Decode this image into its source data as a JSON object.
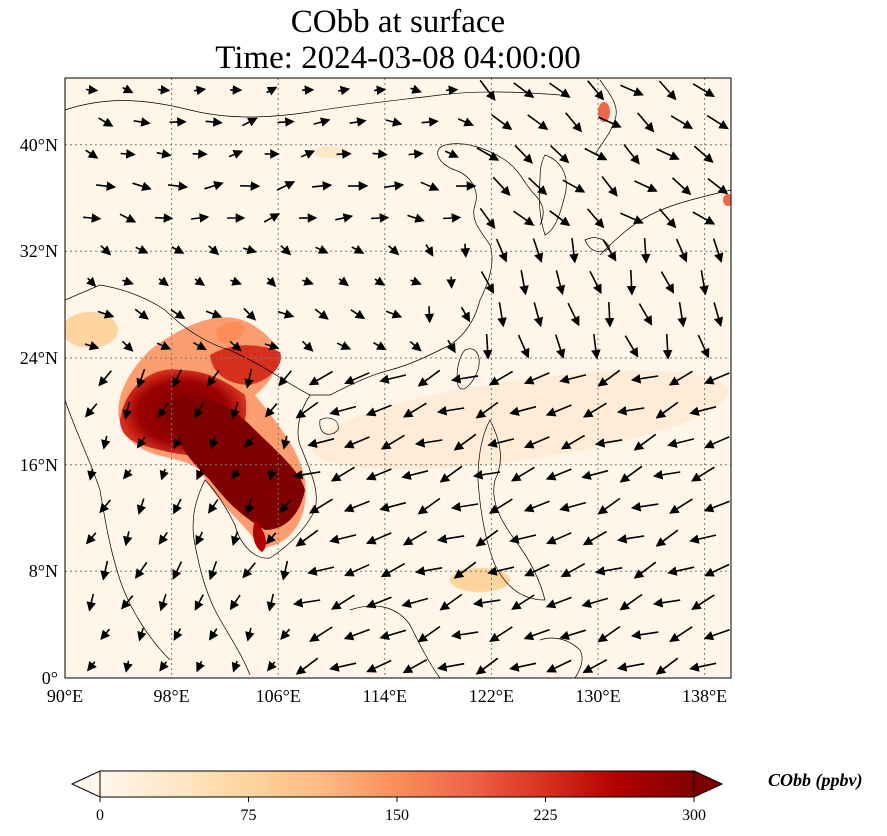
{
  "title": {
    "line1": "CObb at surface",
    "line2": "Time: 2024-03-08 04:00:00"
  },
  "map": {
    "lon_range": [
      90,
      140
    ],
    "lat_range": [
      0,
      45
    ],
    "lon_ticks": [
      "90°E",
      "98°E",
      "106°E",
      "114°E",
      "122°E",
      "130°E",
      "138°E"
    ],
    "lat_ticks": [
      "0°",
      "8°N",
      "16°N",
      "24°N",
      "32°N",
      "40°N"
    ],
    "gridlines": true,
    "field_colors": {
      "background": "#fff5e8",
      "high": "#7f0000",
      "mid": "#d7301f",
      "low": "#fdbb84"
    },
    "wind_vectors": "black arrows"
  },
  "colorbar": {
    "label": "CObb (ppbv)",
    "ticks": [
      "0",
      "75",
      "150",
      "225",
      "300"
    ],
    "range": [
      0,
      300
    ],
    "extend": "both",
    "colors": [
      "#fff7ec",
      "#fee8c8",
      "#fdd49e",
      "#fdbb84",
      "#fc8d59",
      "#ef6548",
      "#d7301f",
      "#b30000",
      "#7f0000"
    ]
  }
}
